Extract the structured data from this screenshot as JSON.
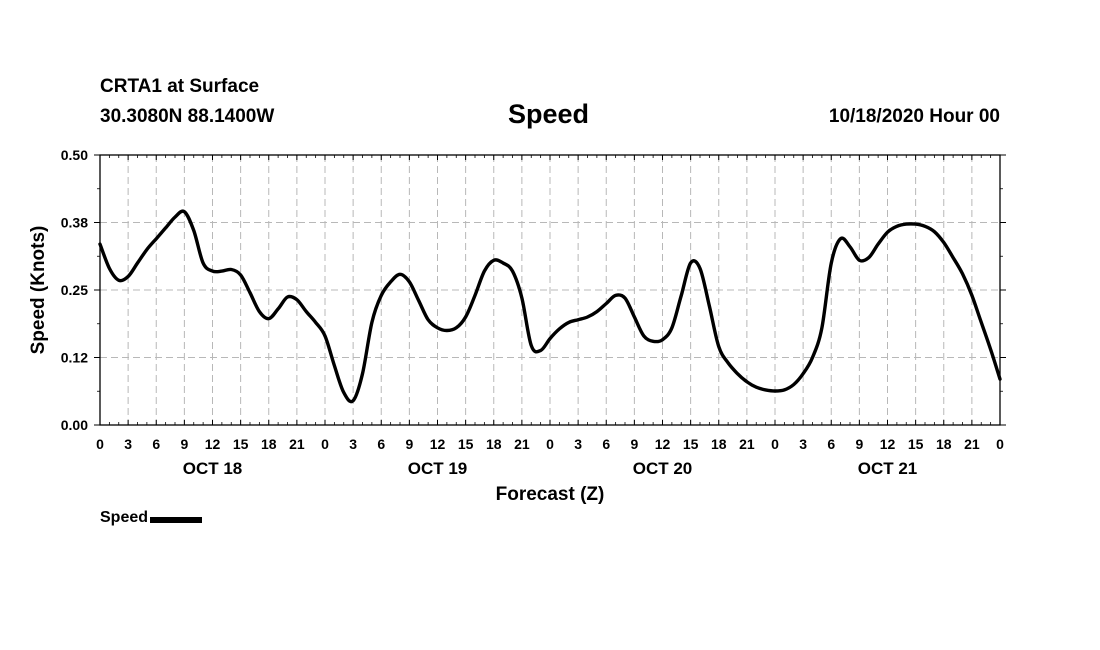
{
  "header": {
    "station": "CRTA1 at Surface",
    "coords": "30.3080N 88.1400W",
    "title": "Speed",
    "datetime": "10/18/2020 Hour 00"
  },
  "legend": {
    "label": "Speed"
  },
  "colors": {
    "line": "#000000",
    "grid": "#b8b8b8",
    "axis": "#000000"
  },
  "chart_data": {
    "type": "line",
    "title": "Speed",
    "xlabel": "Forecast (Z)",
    "ylabel": "Speed (Knots)",
    "xlim": [
      0,
      96
    ],
    "ylim": [
      0,
      0.5
    ],
    "yticks": [
      0.0,
      0.125,
      0.25,
      0.375,
      0.5
    ],
    "ytick_labels": [
      "0.00",
      "0.12",
      "0.25",
      "0.38",
      "0.50"
    ],
    "xticks": [
      0,
      3,
      6,
      9,
      12,
      15,
      18,
      21,
      24,
      27,
      30,
      33,
      36,
      39,
      42,
      45,
      48,
      51,
      54,
      57,
      60,
      63,
      66,
      69,
      72,
      75,
      78,
      81,
      84,
      87,
      90,
      93,
      96
    ],
    "xtick_labels": [
      "0",
      "3",
      "6",
      "9",
      "12",
      "15",
      "18",
      "21",
      "0",
      "3",
      "6",
      "9",
      "12",
      "15",
      "18",
      "21",
      "0",
      "3",
      "6",
      "9",
      "12",
      "15",
      "18",
      "21",
      "0",
      "3",
      "6",
      "9",
      "12",
      "15",
      "18",
      "21",
      "0"
    ],
    "day_labels": [
      {
        "x": 12,
        "label": "OCT 18"
      },
      {
        "x": 36,
        "label": "OCT 19"
      },
      {
        "x": 60,
        "label": "OCT 20"
      },
      {
        "x": 84,
        "label": "OCT 21"
      }
    ],
    "grid": true,
    "legend_position": "bottom-left",
    "series": [
      {
        "name": "Speed",
        "x": [
          0,
          1,
          2,
          3,
          4,
          5,
          6,
          7,
          8,
          9,
          10,
          11,
          12,
          13,
          14,
          15,
          16,
          17,
          18,
          19,
          20,
          21,
          22,
          23,
          24,
          25,
          26,
          27,
          28,
          29,
          30,
          31,
          32,
          33,
          34,
          35,
          36,
          37,
          38,
          39,
          40,
          41,
          42,
          43,
          44,
          45,
          46,
          47,
          48,
          49,
          50,
          51,
          52,
          53,
          54,
          55,
          56,
          57,
          58,
          59,
          60,
          61,
          62,
          63,
          64,
          65,
          66,
          67,
          68,
          69,
          70,
          71,
          72,
          73,
          74,
          75,
          76,
          77,
          78,
          79,
          80,
          81,
          82,
          83,
          84,
          85,
          86,
          87,
          88,
          89,
          90,
          91,
          92,
          93,
          94,
          95,
          96
        ],
        "values": [
          0.335,
          0.29,
          0.268,
          0.275,
          0.3,
          0.325,
          0.345,
          0.365,
          0.385,
          0.395,
          0.36,
          0.3,
          0.285,
          0.285,
          0.288,
          0.278,
          0.245,
          0.21,
          0.197,
          0.215,
          0.237,
          0.232,
          0.21,
          0.19,
          0.165,
          0.11,
          0.06,
          0.045,
          0.095,
          0.19,
          0.24,
          0.265,
          0.279,
          0.265,
          0.23,
          0.195,
          0.18,
          0.175,
          0.18,
          0.2,
          0.24,
          0.285,
          0.305,
          0.3,
          0.285,
          0.235,
          0.147,
          0.138,
          0.16,
          0.178,
          0.19,
          0.195,
          0.2,
          0.21,
          0.225,
          0.24,
          0.235,
          0.2,
          0.165,
          0.155,
          0.158,
          0.18,
          0.24,
          0.3,
          0.29,
          0.22,
          0.145,
          0.115,
          0.095,
          0.08,
          0.07,
          0.065,
          0.063,
          0.065,
          0.075,
          0.095,
          0.125,
          0.18,
          0.3,
          0.345,
          0.33,
          0.305,
          0.31,
          0.335,
          0.357,
          0.368,
          0.372,
          0.372,
          0.368,
          0.358,
          0.338,
          0.31,
          0.28,
          0.24,
          0.19,
          0.14,
          0.085
        ]
      }
    ]
  }
}
